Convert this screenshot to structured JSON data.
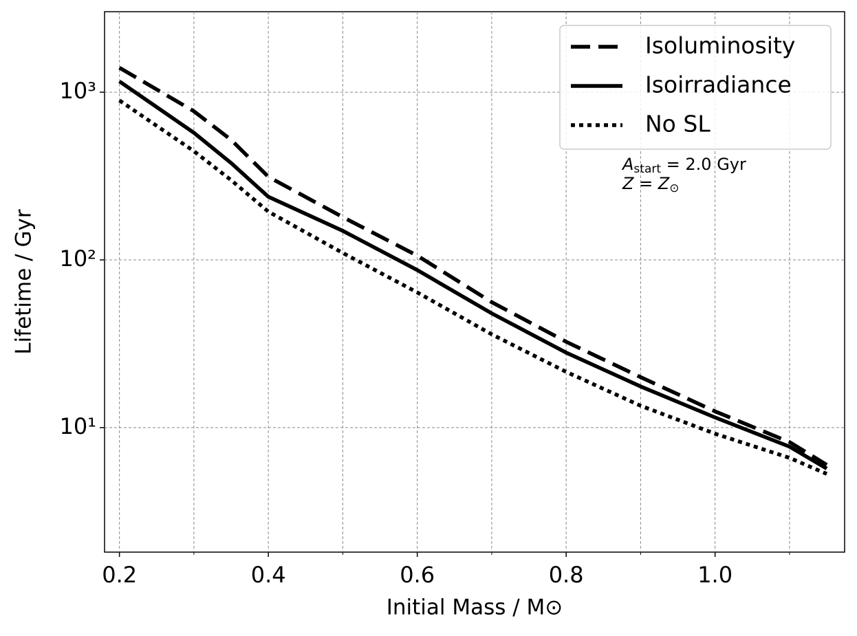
{
  "chart_data": {
    "type": "line",
    "xlabel": "Initial Mass / M⊙",
    "ylabel": "Lifetime / Gyr",
    "x": [
      0.2,
      0.3,
      0.35,
      0.4,
      0.5,
      0.6,
      0.7,
      0.8,
      0.9,
      1.0,
      1.1,
      1.15
    ],
    "series": [
      {
        "name": "Isoluminosity",
        "color": "#000000",
        "linestyle": "dashed",
        "values": [
          1400,
          770,
          520,
          313,
          180,
          106,
          56,
          32.5,
          20,
          12.5,
          8.2,
          6.0
        ]
      },
      {
        "name": "Isoirradiance",
        "color": "#000000",
        "linestyle": "solid",
        "values": [
          1160,
          573,
          378,
          238,
          149,
          87,
          48,
          28,
          17.6,
          11.5,
          7.7,
          5.7
        ]
      },
      {
        "name": "No SL",
        "color": "#000000",
        "linestyle": "dotted",
        "values": [
          893,
          445,
          299,
          194,
          110,
          64,
          36,
          21.5,
          13.5,
          9.2,
          6.6,
          5.3
        ]
      }
    ],
    "xlim": [
      0.18,
      1.174
    ],
    "ylim": [
      1.81,
      3020
    ],
    "ylog": true,
    "xticks": [
      0.2,
      0.4,
      0.6,
      0.8,
      {
        "value": 1.0,
        "label": "1.0"
      }
    ],
    "xminor": [
      0.3,
      0.5,
      0.7,
      0.9,
      1.1
    ],
    "yticks": [
      {
        "value": 10,
        "label": "10¹"
      },
      {
        "value": 100,
        "label": "10²"
      },
      {
        "value": 1000,
        "label": "10³"
      }
    ],
    "grid": true,
    "legend": "upper right",
    "annotation_lines": [
      [
        "A",
        "start",
        " = 2.0 Gyr"
      ],
      [
        "Z = Z",
        "⊙"
      ]
    ]
  }
}
